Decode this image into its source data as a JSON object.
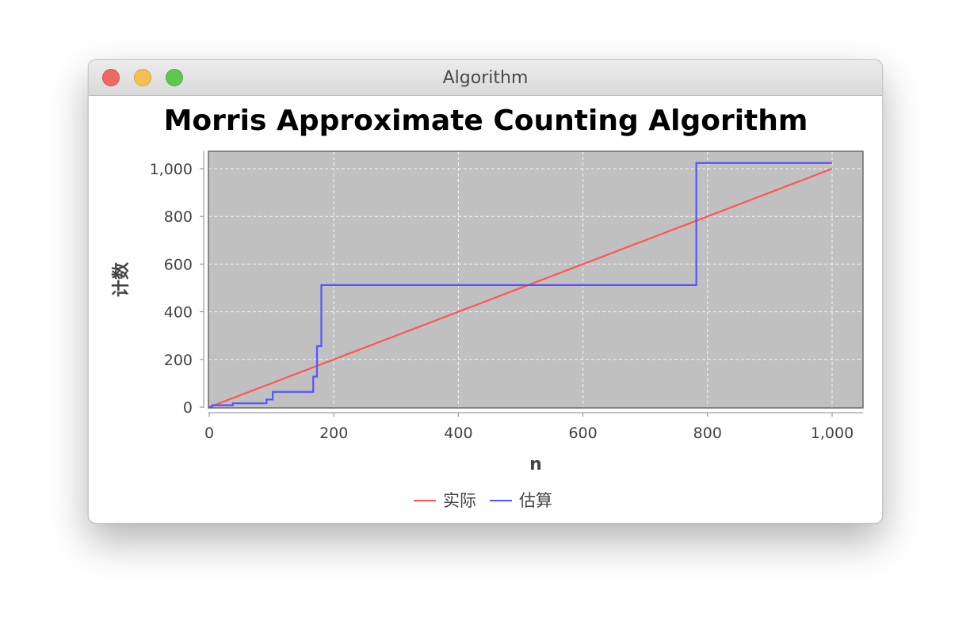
{
  "window": {
    "title": "Algorithm",
    "buttons": [
      "close",
      "minimize",
      "zoom"
    ]
  },
  "chart_data": {
    "type": "line",
    "title": "Morris Approximate Counting Algorithm",
    "xlabel": "n",
    "ylabel": "计数",
    "xlim": [
      0,
      1050
    ],
    "ylim": [
      0,
      1070
    ],
    "xticks": [
      0,
      200,
      400,
      600,
      800,
      1000
    ],
    "xtick_labels": [
      "0",
      "200",
      "400",
      "600",
      "800",
      "1,000"
    ],
    "yticks": [
      0,
      200,
      400,
      600,
      800,
      1000
    ],
    "ytick_labels": [
      "0",
      "200",
      "400",
      "600",
      "800",
      "1,000"
    ],
    "grid": true,
    "background": "#c0c0c0",
    "legend_position": "bottom",
    "series": [
      {
        "name": "实际",
        "color": "#ff5555",
        "step": false,
        "x": [
          0,
          1000
        ],
        "y": [
          0,
          1000
        ]
      },
      {
        "name": "估算",
        "color": "#5555ff",
        "step": true,
        "x": [
          0,
          5,
          38,
          92,
          102,
          167,
          173,
          180,
          782,
          1000
        ],
        "y": [
          0,
          8,
          16,
          32,
          64,
          128,
          256,
          512,
          1024,
          1024
        ]
      }
    ]
  }
}
